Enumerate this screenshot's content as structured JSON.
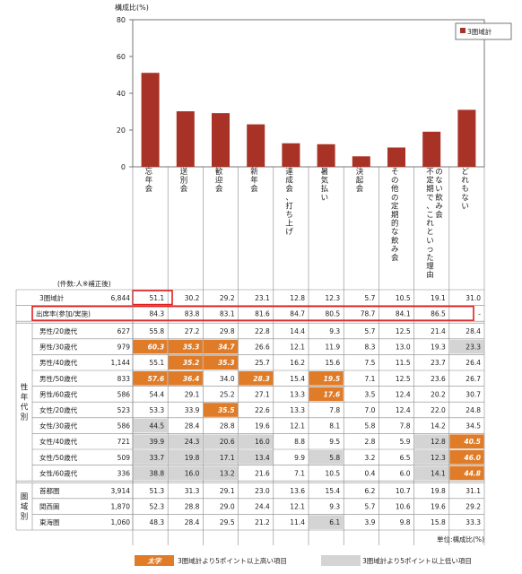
{
  "chart_data": {
    "type": "bar",
    "ylabel": "構成比(%)",
    "ylim": [
      0,
      80
    ],
    "yticks": [
      0,
      20,
      40,
      60,
      80
    ],
    "legend": {
      "label": "3圏域計",
      "position": "top-right"
    },
    "categories": [
      "忘年会",
      "送別会",
      "歓迎会",
      "新年会",
      "達成会、打ち上げ",
      "暑気払い",
      "決起会",
      "その他の定期的な飲み会",
      "不定期で、これといった理由のない飲み会",
      "どれもない"
    ],
    "series": [
      {
        "name": "3圏域計",
        "values": [
          51.1,
          30.2,
          29.2,
          23.1,
          12.8,
          12.3,
          5.7,
          10.5,
          19.1,
          31.0
        ]
      }
    ]
  },
  "colors": {
    "bar": "#a93226",
    "high": "#e07b28",
    "low": "#d4d4d4",
    "highlight_box": "#e02020"
  },
  "table": {
    "count_header": "(件数:人※補正後)",
    "total": {
      "label": "3圏域計",
      "n": "6,844",
      "values": [
        "51.1",
        "30.2",
        "29.2",
        "23.1",
        "12.8",
        "12.3",
        "5.7",
        "10.5",
        "19.1",
        "31.0"
      ]
    },
    "attendance": {
      "label": "出席率(参加/実施)",
      "values": [
        "84.3",
        "83.8",
        "83.1",
        "81.6",
        "84.7",
        "80.5",
        "78.7",
        "84.1",
        "86.5",
        "-"
      ]
    },
    "group1_label": "性年代別",
    "group1": [
      {
        "label": "男性/20歳代",
        "n": "627",
        "values": [
          "55.8",
          "27.2",
          "29.8",
          "22.8",
          "14.4",
          "9.3",
          "5.7",
          "12.5",
          "21.4",
          "28.4"
        ],
        "marks": [
          "",
          "",
          "",
          "",
          "",
          "",
          "",
          "",
          "",
          ""
        ]
      },
      {
        "label": "男性/30歳代",
        "n": "979",
        "values": [
          "60.3",
          "35.3",
          "34.7",
          "26.6",
          "12.1",
          "11.9",
          "8.3",
          "13.0",
          "19.3",
          "23.3"
        ],
        "marks": [
          "h",
          "h",
          "h",
          "",
          "",
          "",
          "",
          "",
          "",
          "l"
        ]
      },
      {
        "label": "男性/40歳代",
        "n": "1,144",
        "values": [
          "55.1",
          "35.2",
          "35.3",
          "25.7",
          "16.2",
          "15.6",
          "7.5",
          "11.5",
          "23.7",
          "26.4"
        ],
        "marks": [
          "",
          "h",
          "h",
          "",
          "",
          "",
          "",
          "",
          "",
          ""
        ]
      },
      {
        "label": "男性/50歳代",
        "n": "833",
        "values": [
          "57.6",
          "36.4",
          "34.0",
          "28.3",
          "15.4",
          "19.5",
          "7.1",
          "12.5",
          "23.6",
          "26.7"
        ],
        "marks": [
          "h",
          "h",
          "",
          "h",
          "",
          "h",
          "",
          "",
          "",
          ""
        ]
      },
      {
        "label": "男性/60歳代",
        "n": "586",
        "values": [
          "54.4",
          "29.1",
          "25.2",
          "27.1",
          "13.3",
          "17.6",
          "3.5",
          "12.4",
          "20.2",
          "30.7"
        ],
        "marks": [
          "",
          "",
          "",
          "",
          "",
          "h",
          "",
          "",
          "",
          ""
        ]
      },
      {
        "label": "女性/20歳代",
        "n": "523",
        "values": [
          "53.3",
          "33.9",
          "35.5",
          "22.6",
          "13.3",
          "7.8",
          "7.0",
          "12.4",
          "22.0",
          "24.8"
        ],
        "marks": [
          "",
          "",
          "h",
          "",
          "",
          "",
          "",
          "",
          "",
          ""
        ]
      },
      {
        "label": "女性/30歳代",
        "n": "586",
        "values": [
          "44.5",
          "28.4",
          "28.8",
          "19.6",
          "12.1",
          "8.1",
          "5.8",
          "7.8",
          "14.2",
          "34.5"
        ],
        "marks": [
          "l",
          "",
          "",
          "",
          "",
          "",
          "",
          "",
          "",
          ""
        ]
      },
      {
        "label": "女性/40歳代",
        "n": "721",
        "values": [
          "39.9",
          "24.3",
          "20.6",
          "16.0",
          "8.8",
          "9.5",
          "2.8",
          "5.9",
          "12.8",
          "40.5"
        ],
        "marks": [
          "l",
          "l",
          "l",
          "l",
          "",
          "",
          "",
          "",
          "l",
          "h"
        ]
      },
      {
        "label": "女性/50歳代",
        "n": "509",
        "values": [
          "33.7",
          "19.8",
          "17.1",
          "13.4",
          "9.9",
          "5.8",
          "3.2",
          "6.5",
          "12.3",
          "46.0"
        ],
        "marks": [
          "l",
          "l",
          "l",
          "l",
          "",
          "l",
          "",
          "",
          "l",
          "h"
        ]
      },
      {
        "label": "女性/60歳代",
        "n": "336",
        "values": [
          "38.8",
          "16.0",
          "13.2",
          "21.6",
          "7.1",
          "10.5",
          "0.4",
          "6.0",
          "14.1",
          "44.8"
        ],
        "marks": [
          "l",
          "l",
          "l",
          "",
          "",
          "",
          "",
          "",
          "l",
          "h"
        ]
      }
    ],
    "group2_label": "圏域別",
    "group2": [
      {
        "label": "首都圏",
        "n": "3,914",
        "values": [
          "51.3",
          "31.3",
          "29.1",
          "23.0",
          "13.6",
          "15.4",
          "6.2",
          "10.7",
          "19.8",
          "31.1"
        ],
        "marks": [
          "",
          "",
          "",
          "",
          "",
          "",
          "",
          "",
          "",
          ""
        ]
      },
      {
        "label": "関西圏",
        "n": "1,870",
        "values": [
          "52.3",
          "28.8",
          "29.0",
          "24.4",
          "12.1",
          "9.3",
          "5.7",
          "10.6",
          "19.6",
          "29.2"
        ],
        "marks": [
          "",
          "",
          "",
          "",
          "",
          "",
          "",
          "",
          "",
          ""
        ]
      },
      {
        "label": "東海圏",
        "n": "1,060",
        "values": [
          "48.3",
          "28.4",
          "29.5",
          "21.2",
          "11.4",
          "6.1",
          "3.9",
          "9.8",
          "15.8",
          "33.3"
        ],
        "marks": [
          "",
          "",
          "",
          "",
          "",
          "l",
          "",
          "",
          "",
          ""
        ]
      }
    ],
    "unit": "単位:構成比(%)",
    "legend_high_sample": "太字",
    "legend_high": "3圏域計より5ポイント以上高い項目",
    "legend_low": "3圏域計より5ポイント以上低い項目"
  }
}
